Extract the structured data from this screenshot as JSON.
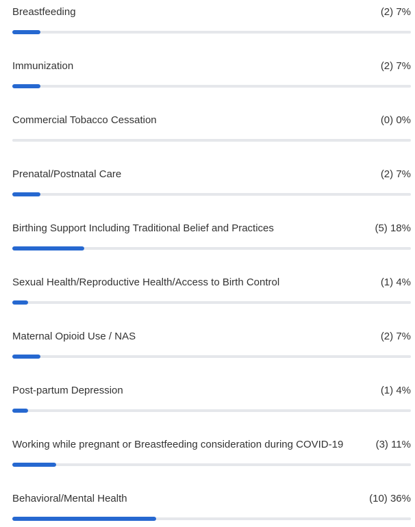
{
  "chart_data": {
    "type": "bar",
    "orientation": "horizontal",
    "categories": [
      "Breastfeeding",
      "Immunization",
      "Commercial Tobacco Cessation",
      "Prenatal/Postnatal Care",
      "Birthing Support Including Traditional Belief and Practices",
      "Sexual Health/Reproductive Health/Access to Birth Control",
      "Maternal Opioid Use / NAS",
      "Post-partum Depression",
      "Working while pregnant or Breastfeeding consideration during COVID-19",
      "Behavioral/Mental Health"
    ],
    "values": [
      7,
      7,
      0,
      7,
      18,
      4,
      7,
      4,
      11,
      36
    ],
    "value_labels": [
      "(2) 7%",
      "(2) 7%",
      "(0) 0%",
      "(2) 7%",
      "(5) 18%",
      "(1) 4%",
      "(2) 7%",
      "(1) 4%",
      "(3) 11%",
      "(10) 36%"
    ],
    "color": "#2668d0",
    "track_color": "#e5e7eb",
    "xlim": [
      0,
      100
    ]
  }
}
